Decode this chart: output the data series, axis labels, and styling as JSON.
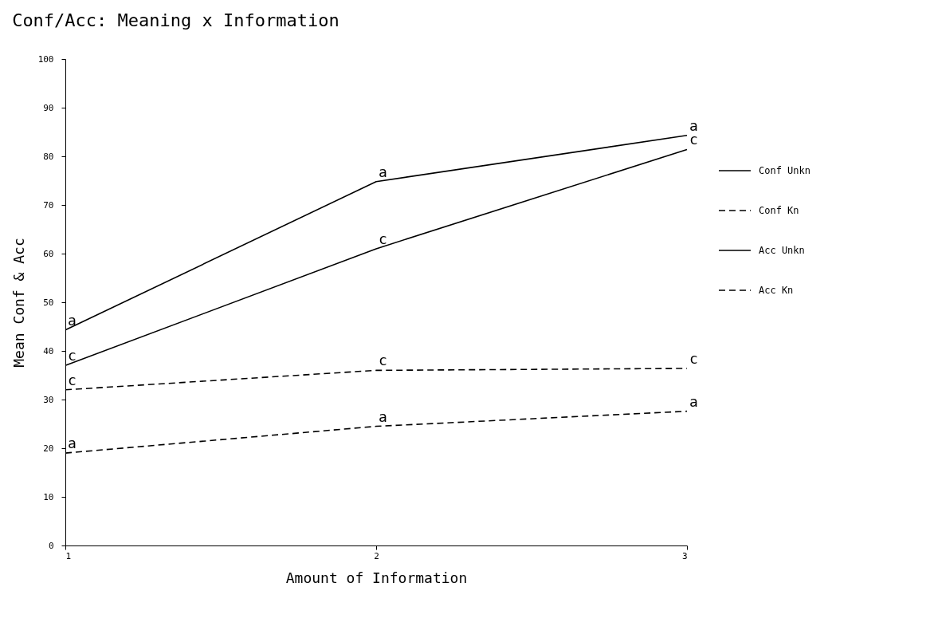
{
  "chart_data": {
    "type": "line",
    "title": "Conf/Acc: Meaning x Information",
    "xlabel": "Amount of Information",
    "ylabel": "Mean Conf & Acc",
    "x": [
      1,
      2,
      3
    ],
    "xlim": [
      1,
      3
    ],
    "xticks": [
      1,
      2,
      3
    ],
    "ylim": [
      0,
      100
    ],
    "yticks": [
      0,
      10,
      20,
      30,
      40,
      50,
      60,
      70,
      80,
      90,
      100
    ],
    "grid": false,
    "legend": "right",
    "marker": "none",
    "series": [
      {
        "name": "Conf Unkn",
        "color": "#000000",
        "line_style": "solid",
        "values": [
          37,
          61,
          81.4
        ]
      },
      {
        "name": "Conf Kn",
        "color": "#000000",
        "line_style": "dashed",
        "values": [
          32,
          36,
          36.4
        ]
      },
      {
        "name": "Acc Unkn",
        "color": "#000000",
        "line_style": "solid",
        "values": [
          44.3,
          74.8,
          84.3
        ]
      },
      {
        "name": "Acc Kn",
        "color": "#000000",
        "line_style": "dashed",
        "values": [
          19,
          24.5,
          27.6
        ]
      }
    ],
    "annotations": [
      {
        "text": "c",
        "x": 1,
        "y": 37
      },
      {
        "text": "c",
        "x": 2,
        "y": 61
      },
      {
        "text": "c",
        "x": 3,
        "y": 81.4
      },
      {
        "text": "c",
        "x": 1,
        "y": 32
      },
      {
        "text": "c",
        "x": 2,
        "y": 36
      },
      {
        "text": "c",
        "x": 3,
        "y": 36.4
      },
      {
        "text": "a",
        "x": 1,
        "y": 44.3
      },
      {
        "text": "a",
        "x": 2,
        "y": 74.8
      },
      {
        "text": "a",
        "x": 3,
        "y": 84.3
      },
      {
        "text": "a",
        "x": 1,
        "y": 19
      },
      {
        "text": "a",
        "x": 2,
        "y": 24.5
      },
      {
        "text": "a",
        "x": 3,
        "y": 27.6
      }
    ]
  }
}
